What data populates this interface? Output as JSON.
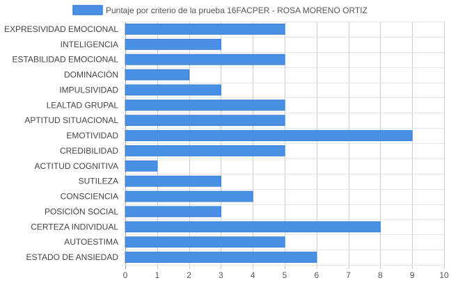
{
  "chart_data": {
    "type": "bar",
    "orientation": "horizontal",
    "categories": [
      "EXPRESIVIDAD EMOCIONAL",
      "INTELIGENCIA",
      "ESTABILIDAD EMOCIONAL",
      "DOMINACIÓN",
      "IMPULSIVIDAD",
      "LEALTAD GRUPAL",
      "APTITUD SITUACIONAL",
      "EMOTIVIDAD",
      "CREDIBILIDAD",
      "ACTITUD COGNITIVA",
      "SUTILEZA",
      "CONSCIENCIA",
      "POSICIÓN SOCIAL",
      "CERTEZA INDIVIDUAL",
      "AUTOESTIMA",
      "ESTADO DE ANSIEDAD"
    ],
    "series": [
      {
        "name": "Puntaje por criterio de la prueba 16FACPER - ROSA MORENO ORTIZ",
        "values": [
          5,
          3,
          5,
          2,
          3,
          5,
          5,
          9,
          5,
          1,
          3,
          4,
          3,
          8,
          5,
          6
        ]
      }
    ],
    "xlim": [
      0,
      10
    ],
    "xticks": [
      "0",
      "1",
      "2",
      "3",
      "4",
      "5",
      "6",
      "7",
      "8",
      "9",
      "10"
    ],
    "grid": true,
    "legend_position": "top-center",
    "colors": {
      "bar_fill": "#4a90e2",
      "bar_stroke": "#3a7fd5",
      "grid": "#cccccc",
      "text": "#444444"
    }
  }
}
